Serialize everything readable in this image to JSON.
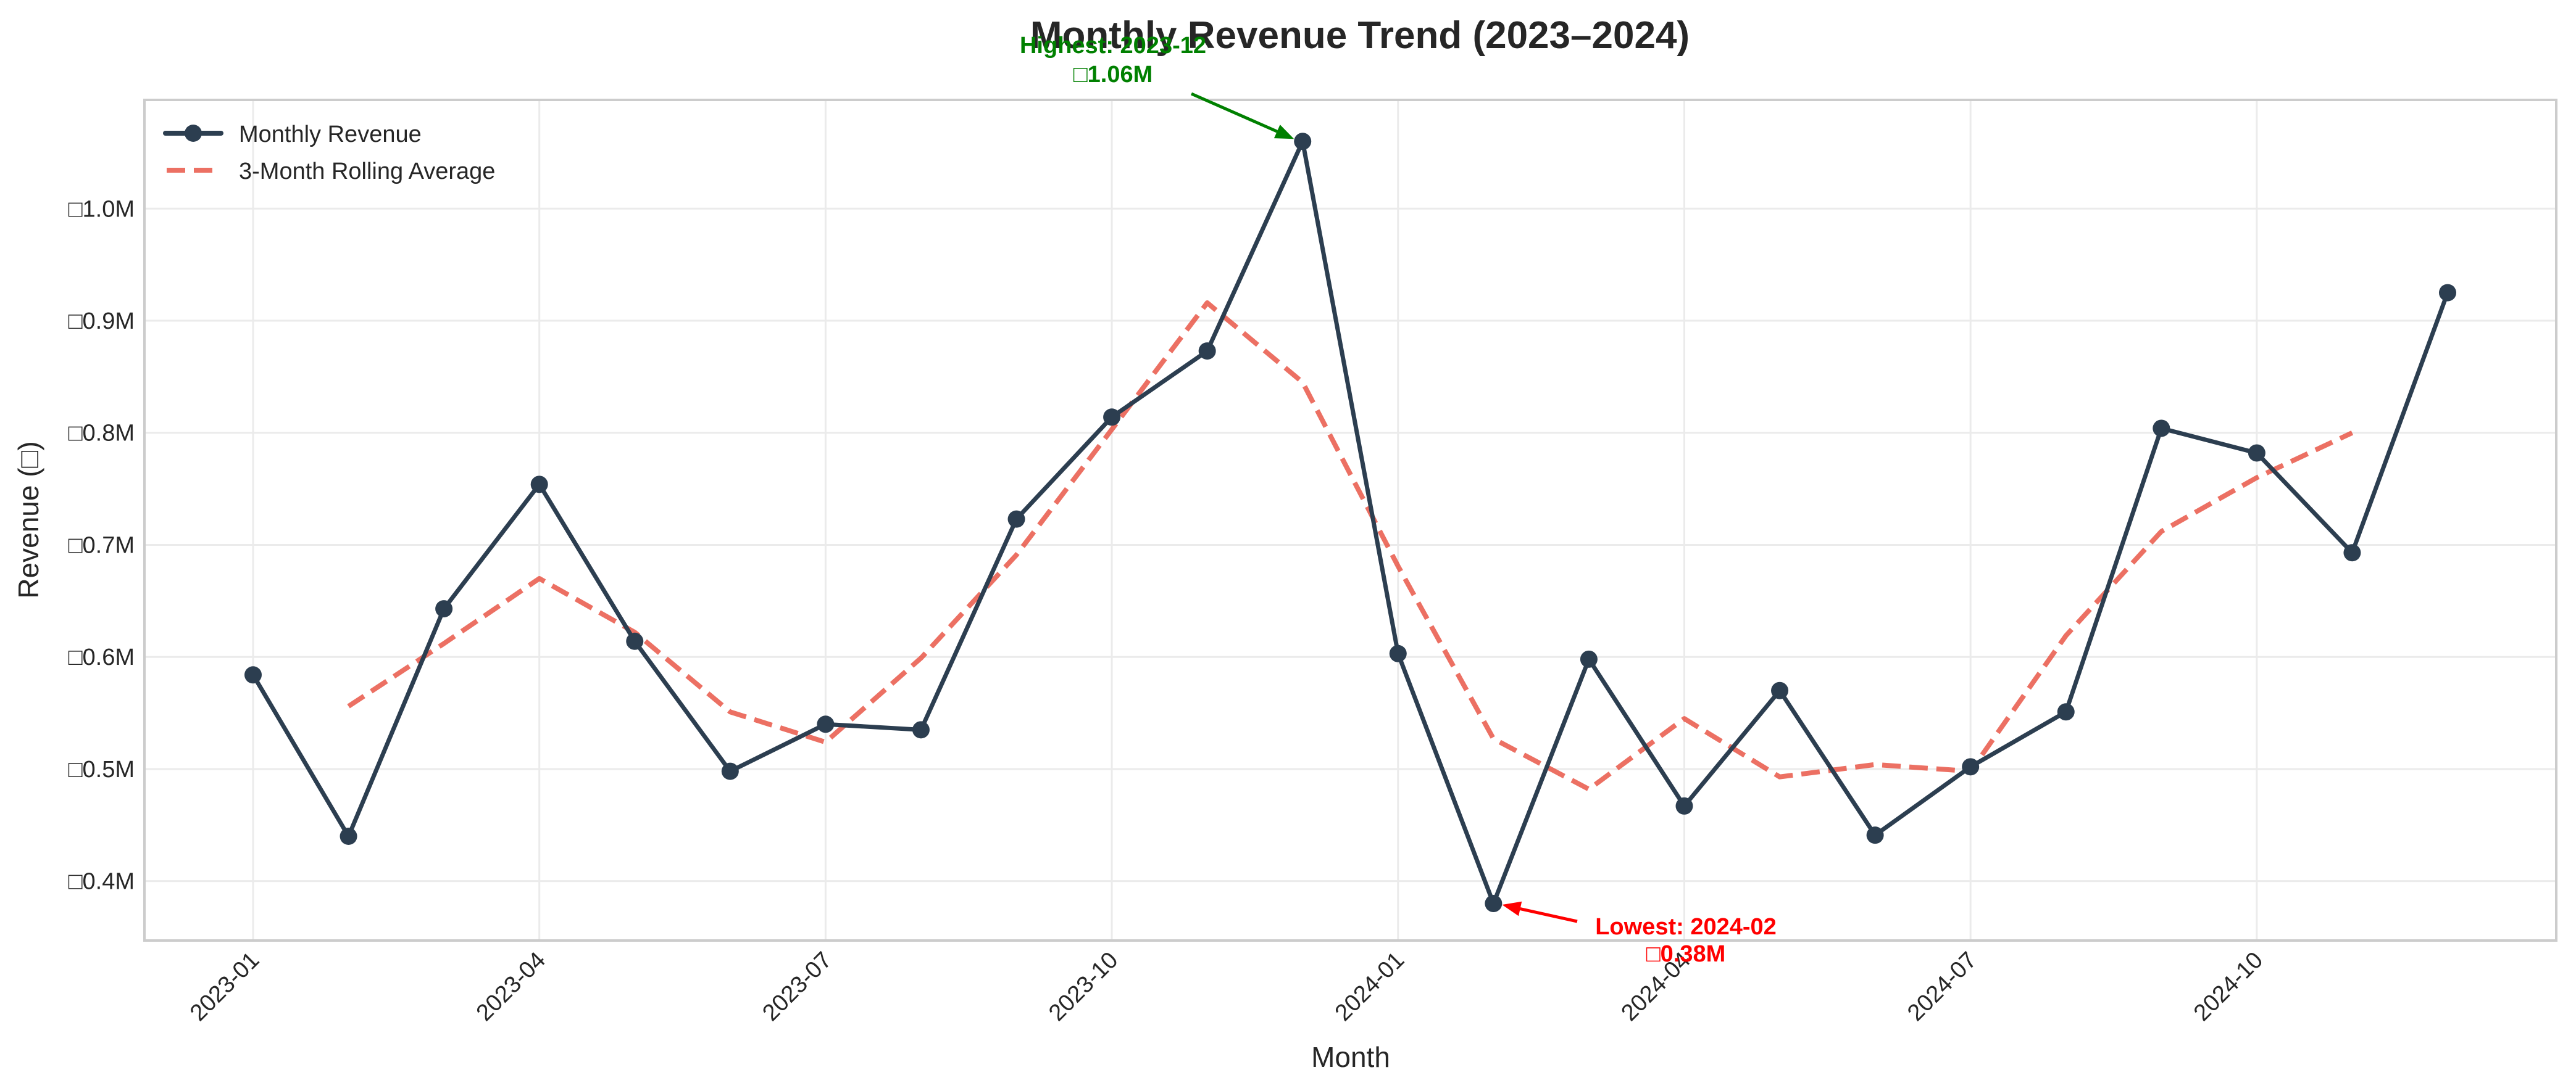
{
  "chart_data": {
    "type": "line",
    "title": "Monthly Revenue Trend (2023–2024)",
    "xlabel": "Month",
    "ylabel": "Revenue (□)",
    "currency_symbol": "□",
    "ylim": [
      0.347,
      1.097
    ],
    "y_unit": "M",
    "grid": true,
    "legend_position": "top-left",
    "x": [
      "2023-01",
      "2023-02",
      "2023-03",
      "2023-04",
      "2023-05",
      "2023-06",
      "2023-07",
      "2023-08",
      "2023-09",
      "2023-10",
      "2023-11",
      "2023-12",
      "2024-01",
      "2024-02",
      "2024-03",
      "2024-04",
      "2024-05",
      "2024-06",
      "2024-07",
      "2024-08",
      "2024-09",
      "2024-10",
      "2024-11",
      "2024-12"
    ],
    "x_ticks": [
      "2023-01",
      "2023-04",
      "2023-07",
      "2023-10",
      "2024-01",
      "2024-04",
      "2024-07",
      "2024-10"
    ],
    "y_ticks": [
      {
        "value": 0.4,
        "label": "□0.4M"
      },
      {
        "value": 0.5,
        "label": "□0.5M"
      },
      {
        "value": 0.6,
        "label": "□0.6M"
      },
      {
        "value": 0.7,
        "label": "□0.7M"
      },
      {
        "value": 0.8,
        "label": "□0.8M"
      },
      {
        "value": 0.9,
        "label": "□0.9M"
      },
      {
        "value": 1.0,
        "label": "□1.0M"
      }
    ],
    "series": [
      {
        "name": "Monthly Revenue",
        "color": "#2c3e50",
        "style": "solid-markers",
        "values": [
          0.584,
          0.44,
          0.643,
          0.754,
          0.614,
          0.498,
          0.54,
          0.535,
          0.723,
          0.814,
          0.873,
          1.06,
          0.603,
          0.38,
          0.598,
          0.467,
          0.57,
          0.441,
          0.502,
          0.551,
          0.804,
          0.782,
          0.693,
          0.925
        ]
      },
      {
        "name": "3-Month Rolling Average",
        "color": "#e74c3c",
        "style": "dashed",
        "values": [
          null,
          0.556,
          0.612,
          0.67,
          0.622,
          0.551,
          0.524,
          0.599,
          0.691,
          0.803,
          0.916,
          0.845,
          0.681,
          0.527,
          0.482,
          0.545,
          0.493,
          0.504,
          0.498,
          0.619,
          0.712,
          0.76,
          0.8,
          null
        ]
      }
    ],
    "annotations": [
      {
        "name": "highest",
        "line1": "Highest: 2023-12",
        "line2": "□1.06M",
        "color": "#008000",
        "target_index": 11,
        "target_value": 1.06
      },
      {
        "name": "lowest",
        "line1": "Lowest: 2024-02",
        "line2": "□0.38M",
        "color": "#ff0000",
        "target_index": 13,
        "target_value": 0.38
      }
    ]
  }
}
